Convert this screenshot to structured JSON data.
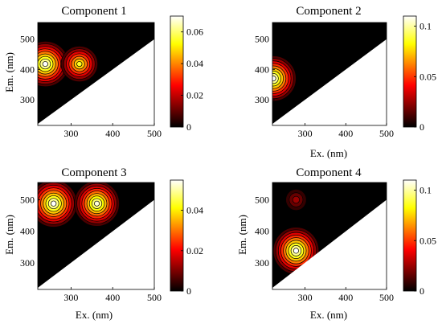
{
  "chart_data": [
    {
      "type": "heatmap",
      "title": "Component 1",
      "xlabel": "",
      "ylabel": "Em. (nm)",
      "xlim": [
        220,
        500
      ],
      "ylim": [
        215,
        555
      ],
      "xticks": [
        "300",
        "400",
        "500"
      ],
      "yticks": [
        "300",
        "400",
        "500"
      ],
      "colorbar": {
        "range": [
          0,
          0.07
        ],
        "ticks": [
          "0",
          "0.02",
          "0.04",
          "0.06"
        ]
      },
      "peaks": [
        {
          "ex": 238,
          "em": 418,
          "intensity": 0.07
        },
        {
          "ex": 320,
          "em": 418,
          "intensity": 0.055
        }
      ]
    },
    {
      "type": "heatmap",
      "title": "Component 2",
      "xlabel": "Ex. (nm)",
      "ylabel": "",
      "xlim": [
        220,
        500
      ],
      "ylim": [
        215,
        555
      ],
      "xticks": [
        "300",
        "400",
        "500"
      ],
      "yticks": [
        "300",
        "400",
        "500"
      ],
      "colorbar": {
        "range": [
          0,
          0.11
        ],
        "ticks": [
          "0",
          "0.05",
          "0.1"
        ]
      },
      "peaks": [
        {
          "ex": 222,
          "em": 370,
          "intensity": 0.11
        }
      ]
    },
    {
      "type": "heatmap",
      "title": "Component 3",
      "xlabel": "Ex. (nm)",
      "ylabel": "Em. (nm)",
      "xlim": [
        220,
        500
      ],
      "ylim": [
        215,
        555
      ],
      "xticks": [
        "300",
        "400",
        "500"
      ],
      "yticks": [
        "300",
        "400",
        "500"
      ],
      "colorbar": {
        "range": [
          0,
          0.055
        ],
        "ticks": [
          "0",
          "0.02",
          "0.04"
        ]
      },
      "peaks": [
        {
          "ex": 258,
          "em": 488,
          "intensity": 0.055
        },
        {
          "ex": 362,
          "em": 488,
          "intensity": 0.053
        }
      ]
    },
    {
      "type": "heatmap",
      "title": "Component 4",
      "xlabel": "Ex. (nm)",
      "ylabel": "Em. (nm)",
      "xlim": [
        220,
        500
      ],
      "ylim": [
        215,
        555
      ],
      "xticks": [
        "300",
        "400",
        "500"
      ],
      "yticks": [
        "300",
        "400",
        "500"
      ],
      "colorbar": {
        "range": [
          0,
          0.11
        ],
        "ticks": [
          "0",
          "0.05",
          "0.1"
        ]
      },
      "peaks": [
        {
          "ex": 278,
          "em": 338,
          "intensity": 0.11
        },
        {
          "ex": 278,
          "em": 500,
          "intensity": 0.025
        }
      ]
    }
  ]
}
